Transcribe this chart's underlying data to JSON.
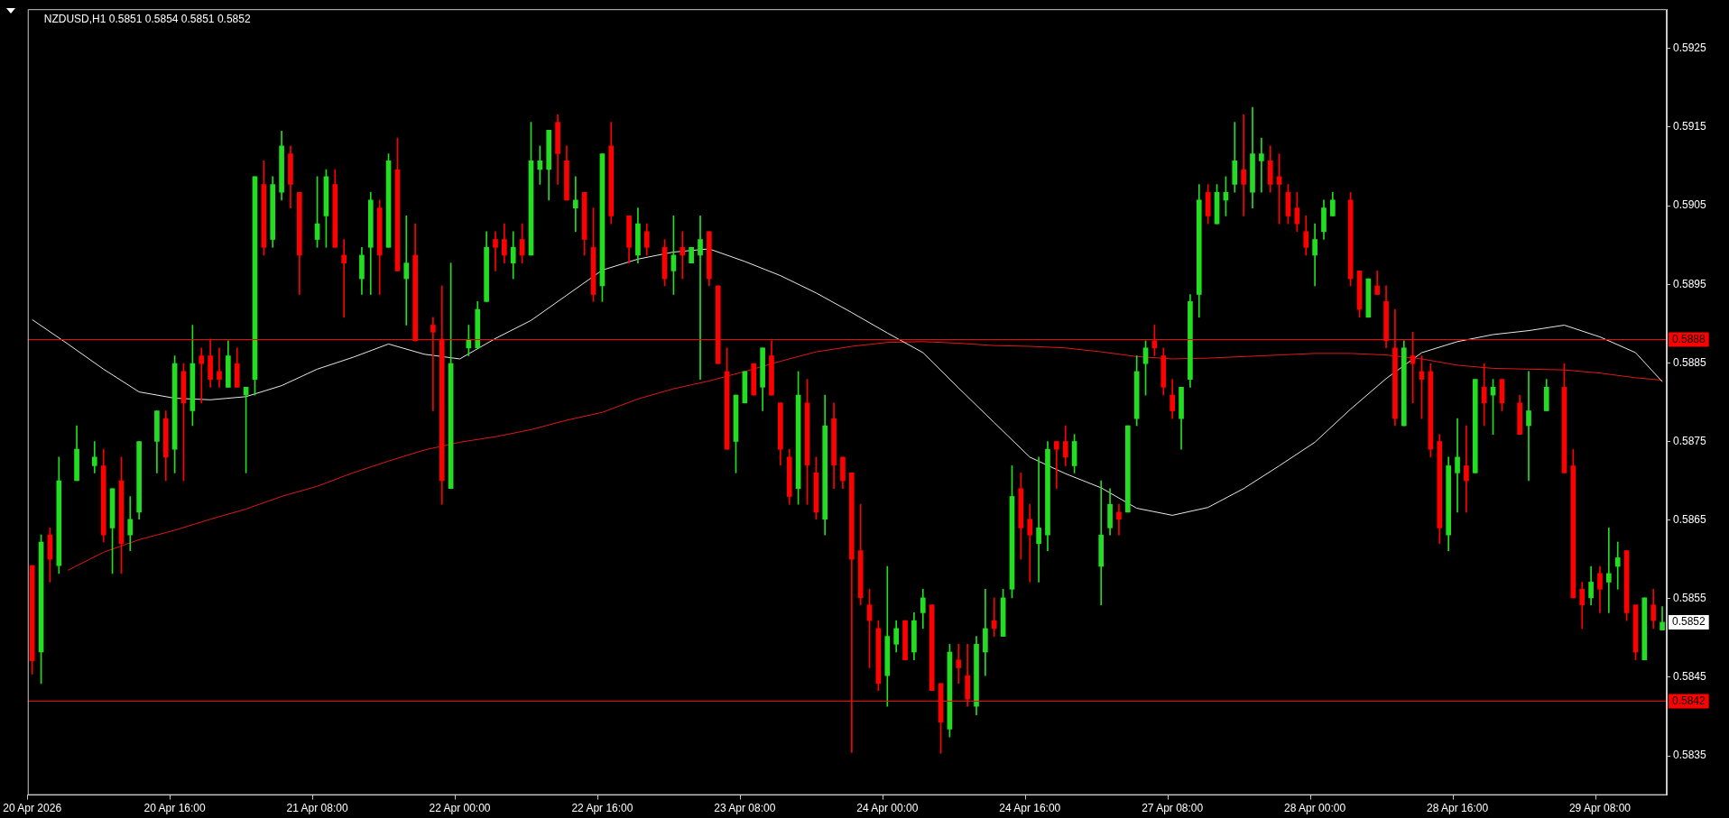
{
  "chart_data": {
    "type": "candlestick",
    "title": "NZDUSD,H1 0.5851 0.5854 0.5851 0.5852",
    "categories": [
      "20 Apr 2026",
      null,
      null,
      null,
      null,
      null,
      null,
      null,
      null,
      null,
      null,
      null,
      null,
      null,
      null,
      null,
      "20 Apr 16:00",
      null,
      null,
      null,
      null,
      null,
      null,
      null,
      null,
      null,
      null,
      null,
      null,
      null,
      null,
      null,
      "21 Apr 08:00",
      null,
      null,
      null,
      null,
      null,
      null,
      null,
      null,
      null,
      null,
      null,
      null,
      null,
      null,
      null,
      "22 Apr 00:00",
      null,
      null,
      null,
      null,
      null,
      null,
      null,
      null,
      null,
      null,
      null,
      null,
      null,
      null,
      null,
      "22 Apr 16:00",
      null,
      null,
      null,
      null,
      null,
      null,
      null,
      null,
      null,
      null,
      null,
      null,
      null,
      null,
      null,
      "23 Apr 08:00",
      null,
      null,
      null,
      null,
      null,
      null,
      null,
      null,
      null,
      null,
      null,
      null,
      null,
      null,
      null,
      "24 Apr 00:00",
      null,
      null,
      null,
      null,
      null,
      null,
      null,
      null,
      null,
      null,
      null,
      null,
      null,
      null,
      null,
      "24 Apr 16:00",
      null,
      null,
      null,
      null,
      null,
      null,
      null,
      null,
      null,
      null,
      null,
      null,
      null,
      null,
      null,
      "27 Apr 08:00",
      null,
      null,
      null,
      null,
      null,
      null,
      null,
      null,
      null,
      null,
      null,
      null,
      null,
      null,
      null,
      "28 Apr 00:00",
      null,
      null,
      null,
      null,
      null,
      null,
      null,
      null,
      null,
      null,
      null,
      null,
      null,
      null,
      null,
      "28 Apr 16:00",
      null,
      null,
      null,
      null,
      null,
      null,
      null,
      null,
      null,
      null,
      null,
      null,
      null,
      null,
      null,
      "29 Apr 08:00",
      null,
      null,
      null,
      null,
      null,
      null,
      null
    ],
    "ohlc": [
      [
        0.58592,
        0.58592,
        0.58454,
        0.58471
      ],
      [
        0.58482,
        0.58631,
        0.58442,
        0.58622
      ],
      [
        0.58631,
        0.5864,
        0.58571,
        0.586
      ],
      [
        0.58592,
        0.5873,
        0.58582,
        0.587
      ],
      null,
      [
        0.587,
        0.5877,
        0.587,
        0.5874
      ],
      null,
      [
        0.58719,
        0.5875,
        0.5871,
        0.5873
      ],
      [
        0.58719,
        0.5874,
        0.58622,
        0.58631
      ],
      [
        0.5864,
        0.5869,
        0.58582,
        0.5869
      ],
      [
        0.587,
        0.5873,
        0.58582,
        0.5862
      ],
      [
        0.58631,
        0.5868,
        0.58611,
        0.58651
      ],
      [
        0.5866,
        0.5875,
        0.58651,
        0.5875
      ],
      null,
      [
        0.5875,
        0.58789,
        0.5871,
        0.58789
      ],
      [
        0.58779,
        0.58789,
        0.587,
        0.5873
      ],
      [
        0.5874,
        0.58859,
        0.5871,
        0.58849
      ],
      [
        0.58839,
        0.58849,
        0.587,
        0.58799
      ],
      [
        0.58789,
        0.58898,
        0.5877,
        0.58849
      ],
      [
        0.58859,
        0.58869,
        0.58799,
        0.58849
      ],
      [
        0.58859,
        0.5888,
        0.58819,
        0.58829
      ],
      [
        0.58839,
        0.58869,
        0.58819,
        0.58829
      ],
      [
        0.58819,
        0.58878,
        0.58819,
        0.58859
      ],
      [
        0.58849,
        0.58869,
        0.58819,
        0.58819
      ],
      [
        0.58809,
        0.58819,
        0.5871,
        0.58819
      ],
      [
        0.58829,
        0.59087,
        0.58809,
        0.59087
      ],
      [
        0.59077,
        0.59107,
        0.58987,
        0.58997
      ],
      [
        0.59007,
        0.59087,
        0.58997,
        0.59077
      ],
      [
        0.59067,
        0.59145,
        0.59057,
        0.59126
      ],
      [
        0.59116,
        0.59126,
        0.59047,
        0.59077
      ],
      [
        0.59067,
        0.59067,
        0.58937,
        0.58987
      ],
      null,
      [
        0.59007,
        0.59087,
        0.58997,
        0.59027
      ],
      [
        0.59037,
        0.59096,
        0.58997,
        0.59087
      ],
      [
        0.59077,
        0.59096,
        0.58997,
        0.58997
      ],
      [
        0.58987,
        0.59007,
        0.58908,
        0.58977
      ],
      null,
      [
        0.58957,
        0.58997,
        0.58937,
        0.58987
      ],
      [
        0.58997,
        0.59067,
        0.58937,
        0.59057
      ],
      [
        0.59047,
        0.59057,
        0.58937,
        0.58987
      ],
      [
        0.58997,
        0.59116,
        0.58997,
        0.59107
      ],
      [
        0.59096,
        0.59136,
        0.58967,
        0.58967
      ],
      [
        0.58957,
        0.59037,
        0.58898,
        0.58977
      ],
      [
        0.58987,
        0.59027,
        0.58878,
        0.58878
      ],
      null,
      [
        0.58898,
        0.58908,
        0.58789,
        0.58889
      ],
      [
        0.5888,
        0.58948,
        0.5867,
        0.587
      ],
      [
        0.5869,
        0.58977,
        0.5869,
        0.58849
      ],
      null,
      [
        0.58869,
        0.58898,
        0.58859,
        0.5888
      ],
      [
        0.58869,
        0.58928,
        0.58869,
        0.58918
      ],
      [
        0.58928,
        0.59017,
        0.58928,
        0.58997
      ],
      [
        0.59007,
        0.59017,
        0.58967,
        0.58997
      ],
      [
        0.59007,
        0.59027,
        0.58977,
        0.58987
      ],
      [
        0.58977,
        0.59017,
        0.58957,
        0.58997
      ],
      [
        0.59007,
        0.59027,
        0.58977,
        0.58987
      ],
      [
        0.58987,
        0.59156,
        0.58987,
        0.59107
      ],
      [
        0.59096,
        0.59126,
        0.59077,
        0.59107
      ],
      [
        0.59096,
        0.59146,
        0.59057,
        0.59146
      ],
      [
        0.59156,
        0.59166,
        0.59077,
        0.59116
      ],
      [
        0.59107,
        0.59126,
        0.59057,
        0.59057
      ],
      [
        0.59047,
        0.59087,
        0.59017,
        0.59057
      ],
      [
        0.59067,
        0.59067,
        0.58987,
        0.59007
      ],
      [
        0.58997,
        0.59047,
        0.58928,
        0.58937
      ],
      [
        0.58948,
        0.59116,
        0.58928,
        0.59116
      ],
      [
        0.59126,
        0.59156,
        0.59027,
        0.59037
      ],
      null,
      [
        0.59037,
        0.59037,
        0.58977,
        0.58997
      ],
      [
        0.58987,
        0.59047,
        0.58977,
        0.59027
      ],
      [
        0.59017,
        0.59027,
        0.58987,
        0.58997
      ],
      null,
      [
        0.58997,
        0.59007,
        0.58948,
        0.58957
      ],
      [
        0.58967,
        0.59037,
        0.58937,
        0.58987
      ],
      [
        0.58997,
        0.59017,
        0.58957,
        0.58987
      ],
      [
        0.58977,
        0.58997,
        0.58977,
        0.58997
      ],
      [
        0.58987,
        0.59037,
        0.58829,
        0.59007
      ],
      [
        0.59017,
        0.59017,
        0.58948,
        0.58957
      ],
      [
        0.58948,
        0.58948,
        0.58849,
        0.58849
      ],
      [
        0.58839,
        0.58869,
        0.5874,
        0.5874
      ],
      [
        0.5875,
        0.58809,
        0.5871,
        0.58809
      ],
      [
        0.58799,
        0.58839,
        0.58799,
        0.58839
      ],
      [
        0.58849,
        0.58849,
        0.58809,
        0.58809
      ],
      [
        0.58819,
        0.58869,
        0.58789,
        0.58869
      ],
      [
        0.58859,
        0.58878,
        0.58809,
        0.58809
      ],
      [
        0.58799,
        0.58799,
        0.5872,
        0.5874
      ],
      [
        0.5873,
        0.5874,
        0.5867,
        0.5868
      ],
      [
        0.5869,
        0.58839,
        0.5867,
        0.58809
      ],
      [
        0.58799,
        0.58829,
        0.5867,
        0.5872
      ],
      [
        0.5871,
        0.5873,
        0.58651,
        0.5866
      ],
      [
        0.58651,
        0.58809,
        0.58631,
        0.5877
      ],
      [
        0.58779,
        0.58799,
        0.5869,
        0.5872
      ],
      [
        0.5873,
        0.5873,
        0.5869,
        0.587
      ],
      [
        0.5871,
        0.5871,
        0.58354,
        0.586
      ],
      [
        0.58611,
        0.5867,
        0.58542,
        0.58551
      ],
      [
        0.58542,
        0.58562,
        0.58462,
        0.58522
      ],
      [
        0.58512,
        0.58522,
        0.58433,
        0.58442
      ],
      [
        0.58452,
        0.58591,
        0.58413,
        0.58502
      ],
      [
        0.58492,
        0.58522,
        0.58482,
        0.58512
      ],
      [
        0.58522,
        0.58522,
        0.58472,
        0.58472
      ],
      [
        0.58482,
        0.58532,
        0.58472,
        0.58522
      ],
      [
        0.58532,
        0.58562,
        0.58512,
        0.58551
      ],
      [
        0.58542,
        0.58542,
        0.58433,
        0.58433
      ],
      [
        0.58442,
        0.58442,
        0.58353,
        0.58393
      ],
      [
        0.58384,
        0.58492,
        0.58374,
        0.58482
      ],
      [
        0.58472,
        0.58492,
        0.58442,
        0.58462
      ],
      [
        0.58452,
        0.58492,
        0.58413,
        0.58422
      ],
      [
        0.58413,
        0.58502,
        0.58402,
        0.58492
      ],
      [
        0.58482,
        0.58562,
        0.58452,
        0.58512
      ],
      [
        0.58522,
        0.58551,
        0.58502,
        0.58512
      ],
      [
        0.58502,
        0.58562,
        0.58502,
        0.58551
      ],
      [
        0.58562,
        0.58719,
        0.58551,
        0.5868
      ],
      [
        0.5869,
        0.5871,
        0.586,
        0.5864
      ],
      [
        0.58651,
        0.5867,
        0.58571,
        0.58631
      ],
      [
        0.5862,
        0.5873,
        0.58571,
        0.5864
      ],
      [
        0.58631,
        0.5875,
        0.58611,
        0.5874
      ],
      [
        0.5875,
        0.5875,
        0.5869,
        0.5874
      ],
      [
        0.5875,
        0.5877,
        0.58719,
        0.5873
      ],
      [
        0.58719,
        0.58759,
        0.5871,
        0.5875
      ],
      null,
      null,
      [
        0.58591,
        0.587,
        0.58542,
        0.58631
      ],
      [
        0.5864,
        0.5869,
        0.58631,
        0.5867
      ],
      [
        0.5866,
        0.5867,
        0.58631,
        0.58651
      ],
      [
        0.5866,
        0.5877,
        0.5866,
        0.5877
      ],
      [
        0.58779,
        0.58859,
        0.5877,
        0.58839
      ],
      [
        0.58849,
        0.58878,
        0.58809,
        0.58869
      ],
      [
        0.58878,
        0.58898,
        0.58859,
        0.58869
      ],
      [
        0.58859,
        0.58869,
        0.58809,
        0.58819
      ],
      [
        0.58809,
        0.58829,
        0.58779,
        0.58789
      ],
      [
        0.58779,
        0.58819,
        0.5874,
        0.58819
      ],
      [
        0.58829,
        0.58937,
        0.58819,
        0.58928
      ],
      [
        0.58937,
        0.59077,
        0.58908,
        0.59057
      ],
      [
        0.59067,
        0.59077,
        0.59027,
        0.59037
      ],
      [
        0.59027,
        0.59077,
        0.59027,
        0.59067
      ],
      [
        0.59057,
        0.59087,
        0.59037,
        0.59067
      ],
      [
        0.59077,
        0.59156,
        0.59067,
        0.59107
      ],
      [
        0.59096,
        0.59166,
        0.59037,
        0.59077
      ],
      [
        0.59067,
        0.59175,
        0.59047,
        0.59116
      ],
      [
        0.59107,
        0.59136,
        0.59067,
        0.59116
      ],
      [
        0.59107,
        0.59126,
        0.59067,
        0.59077
      ],
      [
        0.59087,
        0.59116,
        0.59027,
        0.59077
      ],
      [
        0.59067,
        0.59077,
        0.59027,
        0.59037
      ],
      [
        0.59047,
        0.59067,
        0.59017,
        0.59027
      ],
      [
        0.59017,
        0.59037,
        0.58987,
        0.58997
      ],
      [
        0.58987,
        0.59027,
        0.58948,
        0.59007
      ],
      [
        0.59017,
        0.59057,
        0.59007,
        0.59047
      ],
      [
        0.59037,
        0.59067,
        0.59037,
        0.59057
      ],
      null,
      [
        0.59057,
        0.59067,
        0.58948,
        0.58957
      ],
      [
        0.58967,
        0.58967,
        0.58908,
        0.58918
      ],
      [
        0.58908,
        0.58957,
        0.58908,
        0.58957
      ],
      [
        0.58948,
        0.58967,
        0.58937,
        0.58937
      ],
      [
        0.58928,
        0.58948,
        0.58869,
        0.58878
      ],
      [
        0.58869,
        0.58918,
        0.5877,
        0.58779
      ],
      [
        0.5877,
        0.58878,
        0.5877,
        0.58869
      ],
      [
        0.58859,
        0.58889,
        0.58799,
        0.58849
      ],
      [
        0.58839,
        0.58859,
        0.58779,
        0.58829
      ],
      [
        0.58839,
        0.58849,
        0.5873,
        0.5874
      ],
      [
        0.5875,
        0.58759,
        0.5862,
        0.5864
      ],
      [
        0.58631,
        0.5873,
        0.58611,
        0.58719
      ],
      [
        0.5871,
        0.58779,
        0.5866,
        0.5873
      ],
      [
        0.58719,
        0.5877,
        0.5866,
        0.587
      ],
      [
        0.5871,
        0.58829,
        0.5871,
        0.58829
      ],
      [
        0.58819,
        0.58849,
        0.5877,
        0.58799
      ],
      [
        0.58809,
        0.58829,
        0.58759,
        0.58819
      ],
      [
        0.58829,
        0.58829,
        0.58789,
        0.58799
      ],
      null,
      [
        0.58799,
        0.58809,
        0.58759,
        0.58759
      ],
      [
        0.5877,
        0.58839,
        0.587,
        0.58789
      ],
      null,
      [
        0.58789,
        0.58829,
        0.58789,
        0.58819
      ],
      null,
      [
        0.58819,
        0.58849,
        0.5871,
        0.5871
      ],
      [
        0.58719,
        0.5874,
        0.58551,
        0.58551
      ],
      [
        0.58562,
        0.58571,
        0.58512,
        0.58542
      ],
      [
        0.58551,
        0.58591,
        0.58542,
        0.58571
      ],
      [
        0.58582,
        0.58591,
        0.58532,
        0.58562
      ],
      [
        0.58571,
        0.5864,
        0.58532,
        0.58582
      ],
      [
        0.58591,
        0.58622,
        0.58562,
        0.58602
      ],
      [
        0.58611,
        0.58611,
        0.58522,
        0.58532
      ],
      [
        0.58542,
        0.58542,
        0.58472,
        0.58482
      ],
      [
        0.58472,
        0.58551,
        0.58472,
        0.58551
      ],
      [
        0.58542,
        0.58562,
        0.58512,
        0.58522
      ],
      [
        0.5851,
        0.5854,
        0.5851,
        0.5852
      ]
    ],
    "colors": [
      "#ff0000",
      "#22dd22",
      "#ff0000",
      "#22dd22",
      null,
      "#22dd22",
      null,
      "#22dd22",
      "#ff0000",
      "#22dd22",
      "#ff0000",
      "#22dd22",
      "#22dd22",
      null,
      "#22dd22",
      "#ff0000",
      "#22dd22",
      "#ff0000",
      "#22dd22",
      "#ff0000",
      "#ff0000",
      "#ff0000",
      "#22dd22",
      "#ff0000",
      "#22dd22",
      "#22dd22",
      "#ff0000",
      "#22dd22",
      "#22dd22",
      "#ff0000",
      "#ff0000",
      null,
      "#22dd22",
      "#22dd22",
      "#ff0000",
      "#ff0000",
      null,
      "#22dd22",
      "#22dd22",
      "#ff0000",
      "#22dd22",
      "#ff0000",
      "#22dd22",
      "#ff0000",
      null,
      "#ff0000",
      "#ff0000",
      "#22dd22",
      null,
      "#22dd22",
      "#22dd22",
      "#22dd22",
      "#ff0000",
      "#ff0000",
      "#22dd22",
      "#ff0000",
      "#22dd22",
      "#22dd22",
      "#22dd22",
      "#ff0000",
      "#ff0000",
      "#22dd22",
      "#ff0000",
      "#ff0000",
      "#22dd22",
      "#ff0000",
      null,
      "#ff0000",
      "#22dd22",
      "#ff0000",
      null,
      "#ff0000",
      "#22dd22",
      "#ff0000",
      "#22dd22",
      "#22dd22",
      "#ff0000",
      "#ff0000",
      "#ff0000",
      "#22dd22",
      "#22dd22",
      "#ff0000",
      "#22dd22",
      "#ff0000",
      "#ff0000",
      "#ff0000",
      "#22dd22",
      "#ff0000",
      "#ff0000",
      "#22dd22",
      "#ff0000",
      "#ff0000",
      "#ff0000",
      "#ff0000",
      "#ff0000",
      "#ff0000",
      "#22dd22",
      "#22dd22",
      "#ff0000",
      "#22dd22",
      "#22dd22",
      "#ff0000",
      "#ff0000",
      "#22dd22",
      "#ff0000",
      "#ff0000",
      "#22dd22",
      "#22dd22",
      "#ff0000",
      "#22dd22",
      "#22dd22",
      "#ff0000",
      "#ff0000",
      "#22dd22",
      "#22dd22",
      "#ff0000",
      "#ff0000",
      "#22dd22",
      null,
      null,
      "#22dd22",
      "#22dd22",
      "#ff0000",
      "#22dd22",
      "#22dd22",
      "#22dd22",
      "#ff0000",
      "#ff0000",
      "#ff0000",
      "#22dd22",
      "#22dd22",
      "#22dd22",
      "#ff0000",
      "#22dd22",
      "#22dd22",
      "#22dd22",
      "#ff0000",
      "#22dd22",
      "#22dd22",
      "#ff0000",
      "#ff0000",
      "#ff0000",
      "#ff0000",
      "#ff0000",
      "#22dd22",
      "#22dd22",
      "#22dd22",
      null,
      "#ff0000",
      "#ff0000",
      "#22dd22",
      "#ff0000",
      "#ff0000",
      "#ff0000",
      "#22dd22",
      "#ff0000",
      "#ff0000",
      "#ff0000",
      "#ff0000",
      "#22dd22",
      "#22dd22",
      "#ff0000",
      "#22dd22",
      "#ff0000",
      "#22dd22",
      "#ff0000",
      null,
      "#ff0000",
      "#22dd22",
      null,
      "#22dd22",
      null,
      "#ff0000",
      "#ff0000",
      "#ff0000",
      "#22dd22",
      "#ff0000",
      "#22dd22",
      "#22dd22",
      "#ff0000",
      "#ff0000",
      "#22dd22",
      "#ff0000",
      "#22dd22"
    ],
    "series": [
      {
        "type": "line",
        "color": "#e8e8e8",
        "values": [
          0.58905,
          null,
          null,
          null,
          0.58874,
          null,
          null,
          null,
          0.58842,
          null,
          null,
          null,
          0.58813,
          null,
          null,
          null,
          0.58805,
          null,
          null,
          null,
          0.58803,
          null,
          null,
          null,
          0.58807,
          null,
          null,
          null,
          0.58821,
          null,
          null,
          null,
          0.58842,
          null,
          null,
          null,
          0.58857,
          null,
          null,
          null,
          0.58874,
          null,
          null,
          null,
          0.58861,
          null,
          null,
          null,
          0.58855,
          null,
          null,
          null,
          0.58881,
          null,
          null,
          null,
          0.58904,
          null,
          null,
          null,
          0.58936,
          null,
          null,
          null,
          0.58968,
          null,
          null,
          null,
          0.58982,
          null,
          null,
          null,
          0.58991,
          null,
          null,
          null,
          0.58995,
          null,
          null,
          null,
          0.58979,
          null,
          null,
          null,
          0.58961,
          null,
          null,
          null,
          0.58939,
          null,
          null,
          null,
          0.58914,
          null,
          null,
          null,
          0.58888,
          null,
          null,
          null,
          0.58863,
          null,
          null,
          null,
          0.58818,
          null,
          null,
          null,
          0.58774,
          null,
          null,
          null,
          0.5873,
          null,
          null,
          null,
          0.58709,
          null,
          null,
          null,
          0.58691,
          null,
          null,
          null,
          0.58665,
          null,
          null,
          null,
          0.58656,
          null,
          null,
          null,
          0.58666,
          null,
          null,
          null,
          0.5869,
          null,
          null,
          null,
          0.58719,
          null,
          null,
          null,
          0.58749,
          null,
          null,
          null,
          0.58791,
          null,
          null,
          null,
          0.5883,
          null,
          null,
          null,
          0.58863,
          null,
          null,
          null,
          0.58877,
          null,
          null,
          null,
          0.58886,
          null,
          null,
          null,
          0.58891,
          null,
          null,
          null,
          0.58898,
          null,
          null,
          null,
          0.58883,
          null,
          null,
          null,
          0.58863,
          null,
          null,
          0.58826
        ]
      },
      {
        "type": "line",
        "color": "#e01818",
        "values": [
          null,
          null,
          null,
          null,
          0.58586,
          null,
          null,
          null,
          0.58609,
          null,
          null,
          null,
          0.58625,
          null,
          null,
          null,
          0.58637,
          null,
          null,
          null,
          0.58651,
          null,
          null,
          null,
          0.58664,
          null,
          null,
          null,
          0.5868,
          null,
          null,
          null,
          0.58693,
          null,
          null,
          null,
          0.5871,
          null,
          null,
          null,
          0.58725,
          null,
          null,
          null,
          0.58739,
          null,
          null,
          null,
          0.58749,
          null,
          null,
          null,
          0.58756,
          null,
          null,
          null,
          0.58765,
          null,
          null,
          null,
          0.58777,
          null,
          null,
          null,
          0.58787,
          null,
          null,
          null,
          0.58804,
          null,
          null,
          null,
          0.58817,
          null,
          null,
          null,
          0.58827,
          null,
          null,
          null,
          0.58839,
          null,
          null,
          null,
          0.58852,
          null,
          null,
          null,
          0.58864,
          null,
          null,
          null,
          0.58871,
          null,
          null,
          null,
          0.58876,
          null,
          null,
          null,
          0.58877,
          null,
          null,
          null,
          0.58875,
          null,
          null,
          null,
          0.58872,
          null,
          null,
          null,
          0.58871,
          null,
          null,
          null,
          0.58869,
          null,
          null,
          null,
          0.58864,
          null,
          null,
          null,
          0.58858,
          null,
          null,
          null,
          0.58855,
          null,
          null,
          null,
          0.58856,
          null,
          null,
          null,
          0.58858,
          null,
          null,
          null,
          0.5886,
          null,
          null,
          null,
          0.58862,
          null,
          null,
          null,
          0.58862,
          null,
          null,
          null,
          0.5886,
          null,
          null,
          null,
          0.58855,
          null,
          null,
          null,
          0.58847,
          null,
          null,
          null,
          0.58843,
          null,
          null,
          null,
          0.58842,
          null,
          null,
          null,
          0.58841,
          null,
          null,
          null,
          0.58837,
          null,
          null,
          null,
          0.58831,
          null,
          null,
          0.58828
        ]
      }
    ],
    "ylim": [
      0.583,
      0.593
    ],
    "yticks": [
      0.5835,
      0.5845,
      0.5855,
      0.5865,
      0.5875,
      0.5885,
      0.5895,
      0.5905,
      0.5915,
      0.5925
    ],
    "ref_lines": [
      {
        "axis": "y",
        "value": 0.5888,
        "label": "0.5888",
        "color": "#ff0000"
      },
      {
        "axis": "y",
        "value": 0.5842,
        "label": "0.5842",
        "color": "#ff0000"
      }
    ],
    "annotations": [
      "0.5852"
    ],
    "grid": false,
    "legend": false
  }
}
